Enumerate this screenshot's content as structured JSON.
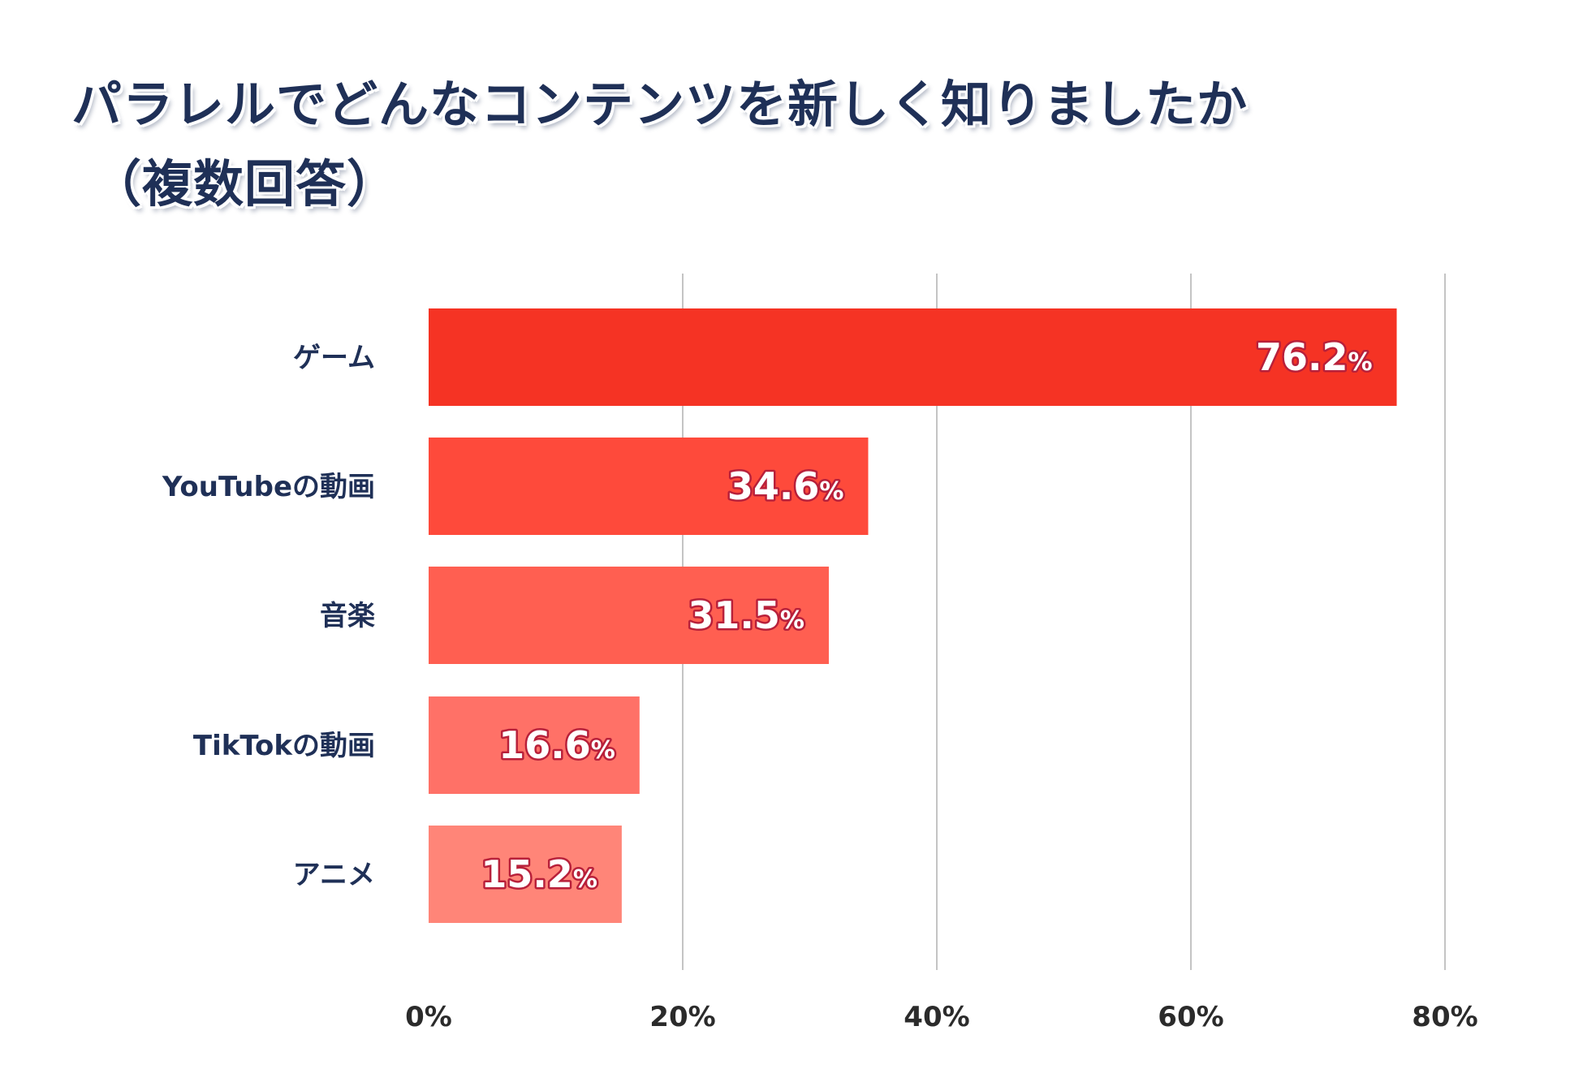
{
  "chart_data": {
    "type": "bar",
    "orientation": "horizontal",
    "title_line1": "パラレルでどんなコンテンツを新しく知りましたか",
    "title_line2": "（複数回答）",
    "categories": [
      "ゲーム",
      "YouTubeの動画",
      "音楽",
      "TikTokの動画",
      "アニメ"
    ],
    "values": [
      76.2,
      34.6,
      31.5,
      16.6,
      15.2
    ],
    "value_suffix": "%",
    "xlim": [
      0,
      80
    ],
    "xticks": [
      0,
      20,
      40,
      60,
      80
    ],
    "xtick_labels": [
      "0%",
      "20%",
      "40%",
      "60%",
      "80%"
    ],
    "grid": true,
    "bar_colors": [
      "#f53324",
      "#fe4a3b",
      "#ff5f51",
      "#ff7167",
      "#ff8578"
    ]
  }
}
